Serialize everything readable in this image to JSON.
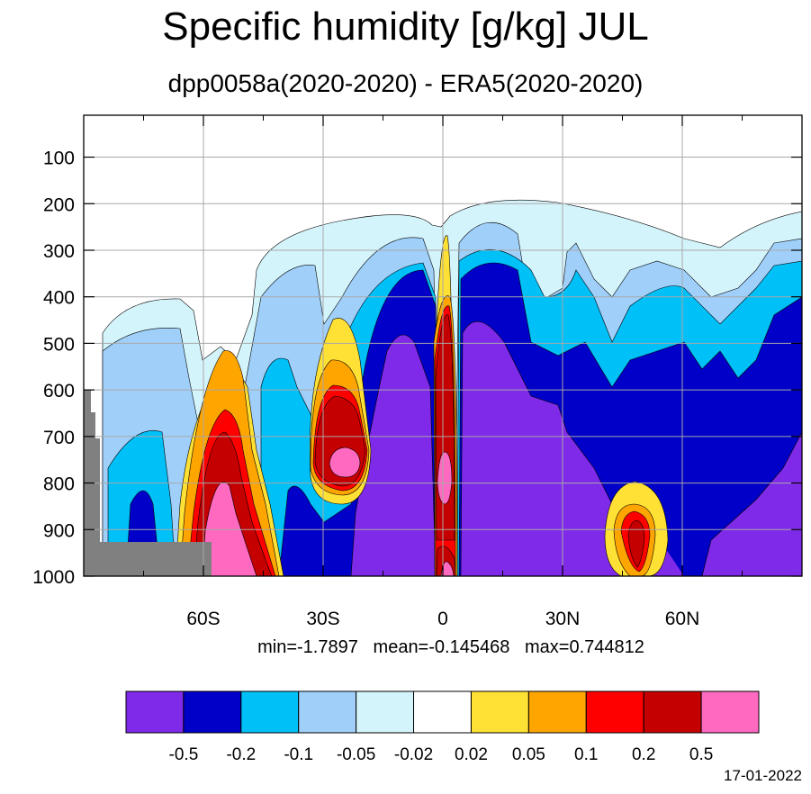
{
  "title": "Specific humidity [g/kg] JUL",
  "subtitle": "dpp0058a(2020-2020) - ERA5(2020-2020)",
  "stats": {
    "min": "min=-1.7897",
    "mean": "mean=-0.145468",
    "max": "max=0.744812"
  },
  "date": "17-01-2022",
  "colors": [
    "#7f2ae8",
    "#0000c8",
    "#00c0f8",
    "#a0d0fa",
    "#d4f4fc",
    "#ffffff",
    "#ffe034",
    "#ffa500",
    "#ff0000",
    "#c40000",
    "#ff69c0"
  ],
  "colorbar": {
    "labels": [
      "-0.5",
      "-0.2",
      "-0.1",
      "-0.05",
      "-0.02",
      "0.02",
      "0.05",
      "0.1",
      "0.2",
      "0.5"
    ]
  },
  "chart_data": {
    "type": "heatmap",
    "title": "Specific humidity [g/kg] JUL",
    "subtitle": "dpp0058a(2020-2020) - ERA5(2020-2020)",
    "x_ticks": [
      {
        "value": -60,
        "label": "60S"
      },
      {
        "value": -30,
        "label": "30S"
      },
      {
        "value": 0,
        "label": "0"
      },
      {
        "value": 30,
        "label": "30N"
      },
      {
        "value": 60,
        "label": "60N"
      }
    ],
    "y_ticks": [
      {
        "value": 100,
        "label": "100"
      },
      {
        "value": 200,
        "label": "200"
      },
      {
        "value": 300,
        "label": "300"
      },
      {
        "value": 400,
        "label": "400"
      },
      {
        "value": 500,
        "label": "500"
      },
      {
        "value": 600,
        "label": "600"
      },
      {
        "value": 700,
        "label": "700"
      },
      {
        "value": 800,
        "label": "800"
      },
      {
        "value": 900,
        "label": "900"
      },
      {
        "value": 1000,
        "label": "1000"
      }
    ],
    "xlim": [
      -90,
      90
    ],
    "ylim": [
      1000,
      10
    ],
    "contour_levels": [
      -0.5,
      -0.2,
      -0.1,
      -0.05,
      -0.02,
      0.02,
      0.05,
      0.1,
      0.2,
      0.5
    ],
    "grid": true,
    "colorbar_placement": "bottom"
  }
}
